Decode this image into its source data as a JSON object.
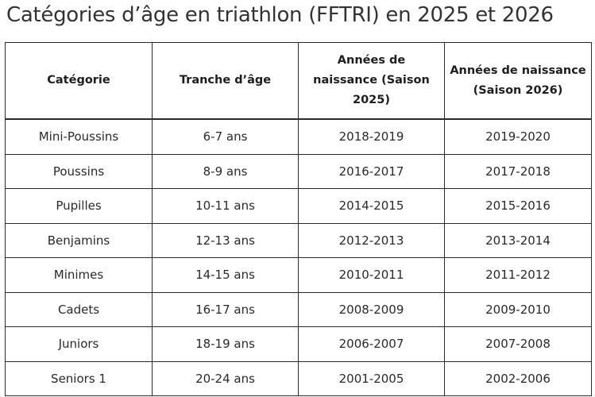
{
  "title": "Catégories d’âge en triathlon (FFTRI) en 2025 et 2026",
  "table": {
    "headers": [
      "Catégorie",
      "Tranche d’âge",
      "Années de naissance (Saison 2025)",
      "Années de naissance (Saison 2026)"
    ],
    "rows": [
      [
        "Mini-Poussins",
        "6-7 ans",
        "2018-2019",
        "2019-2020"
      ],
      [
        "Poussins",
        "8-9 ans",
        "2016-2017",
        "2017-2018"
      ],
      [
        "Pupilles",
        "10-11 ans",
        "2014-2015",
        "2015-2016"
      ],
      [
        "Benjamins",
        "12-13 ans",
        "2012-2013",
        "2013-2014"
      ],
      [
        "Minimes",
        "14-15 ans",
        "2010-2011",
        "2011-2012"
      ],
      [
        "Cadets",
        "16-17 ans",
        "2008-2009",
        "2009-2010"
      ],
      [
        "Juniors",
        "18-19 ans",
        "2006-2007",
        "2007-2008"
      ],
      [
        "Seniors 1",
        "20-24 ans",
        "2001-2005",
        "2002-2006"
      ]
    ]
  }
}
